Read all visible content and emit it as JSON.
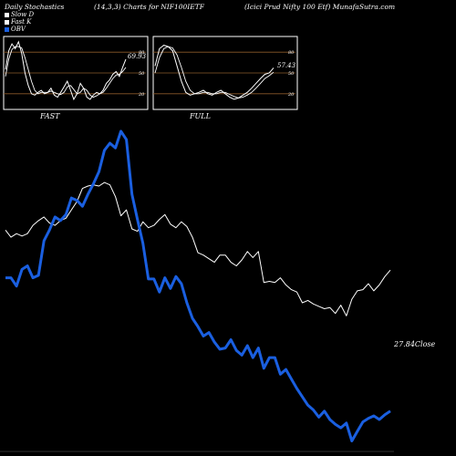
{
  "header": {
    "left": "Daily Stochastics",
    "center": "(14,3,3) Charts for NIF100IETF",
    "right": "(Icici Prud Nifty 100 Etf) MunafaSutra.com"
  },
  "legend": [
    {
      "label": "Slow D",
      "color": "#ffffff"
    },
    {
      "label": "Fast K",
      "color": "#ffffff"
    },
    {
      "label": "OBV",
      "color": "#1a5fe0"
    }
  ],
  "panels": {
    "fast_label": "FAST",
    "full_label": "FULL",
    "fast_value": "69.93",
    "full_value": "57.43",
    "levels": [
      "80",
      "50",
      "20"
    ]
  },
  "close_label": "27.84Close",
  "colors": {
    "background": "#000000",
    "price": "#ffffff",
    "obv": "#1a5fe0",
    "level_line": "#8b5a2b"
  },
  "chart_data": [
    {
      "type": "line",
      "title": "FAST",
      "ylim": [
        0,
        100
      ],
      "reference_levels": [
        80,
        50,
        20
      ],
      "series": [
        {
          "name": "Fast K",
          "values": [
            55,
            82,
            92,
            85,
            95,
            78,
            50,
            32,
            20,
            18,
            22,
            25,
            20,
            22,
            28,
            18,
            15,
            22,
            30,
            38,
            25,
            12,
            20,
            35,
            28,
            15,
            12,
            18,
            22,
            20,
            25,
            35,
            40,
            48,
            52,
            45,
            58,
            69.93
          ]
        },
        {
          "name": "Slow D",
          "values": [
            45,
            70,
            84,
            88,
            88,
            86,
            72,
            55,
            38,
            25,
            20,
            22,
            22,
            22,
            24,
            22,
            20,
            19,
            22,
            30,
            32,
            26,
            20,
            22,
            28,
            25,
            18,
            15,
            17,
            20,
            22,
            28,
            35,
            42,
            47,
            48,
            52,
            58
          ]
        }
      ]
    },
    {
      "type": "line",
      "title": "FULL",
      "ylim": [
        0,
        100
      ],
      "reference_levels": [
        80,
        50,
        20
      ],
      "series": [
        {
          "name": "Fast K",
          "values": [
            60,
            85,
            90,
            88,
            82,
            60,
            38,
            22,
            18,
            20,
            22,
            25,
            20,
            18,
            22,
            25,
            20,
            15,
            12,
            14,
            18,
            22,
            28,
            35,
            42,
            48,
            50,
            57.43
          ]
        },
        {
          "name": "Slow D",
          "values": [
            50,
            72,
            85,
            88,
            86,
            76,
            58,
            38,
            25,
            20,
            20,
            22,
            22,
            20,
            20,
            22,
            22,
            19,
            16,
            14,
            15,
            18,
            22,
            28,
            35,
            42,
            46,
            51
          ]
        }
      ]
    },
    {
      "type": "line",
      "title": "",
      "series": [
        {
          "name": "Close",
          "values": [
            31.2,
            30.6,
            30.9,
            30.7,
            30.9,
            31.6,
            32.0,
            32.3,
            31.8,
            31.6,
            32.0,
            32.2,
            32.9,
            33.6,
            34.7,
            34.9,
            35.0,
            34.9,
            35.2,
            35.0,
            34.0,
            32.4,
            32.9,
            31.3,
            31.1,
            31.9,
            31.4,
            31.6,
            32.1,
            32.5,
            31.7,
            31.4,
            31.9,
            31.5,
            30.6,
            29.3,
            29.1,
            28.8,
            28.5,
            29.1,
            29.1,
            28.5,
            28.2,
            28.7,
            29.4,
            28.9,
            29.4,
            26.8,
            26.9,
            26.8,
            27.2,
            26.6,
            26.2,
            26.0,
            25.1,
            25.3,
            25.0,
            24.8,
            24.6,
            24.7,
            24.2,
            24.9,
            24.0,
            25.4,
            26.1,
            26.2,
            26.7,
            26.1,
            26.6,
            27.3,
            27.84
          ]
        },
        {
          "name": "OBV",
          "values": [
            27.2,
            27.2,
            26.5,
            27.9,
            28.2,
            27.2,
            27.4,
            30.3,
            31.2,
            32.3,
            32.0,
            32.5,
            33.9,
            33.7,
            33.2,
            34.2,
            35.1,
            36.1,
            37.9,
            38.5,
            38.1,
            39.5,
            38.8,
            34.2,
            32.1,
            30.1,
            27.1,
            27.1,
            26.0,
            27.2,
            26.3,
            27.3,
            26.7,
            25.1,
            23.8,
            23.1,
            22.3,
            22.6,
            21.8,
            21.2,
            21.3,
            22.0,
            21.1,
            20.7,
            21.5,
            20.5,
            21.3,
            19.6,
            20.5,
            20.5,
            19.1,
            19.5,
            18.7,
            17.9,
            17.2,
            16.5,
            16.1,
            15.5,
            16.0,
            15.3,
            14.9,
            14.6,
            15.0,
            13.5,
            14.3,
            15.1,
            15.4,
            15.6,
            15.3,
            15.7,
            16.0
          ]
        }
      ]
    }
  ]
}
